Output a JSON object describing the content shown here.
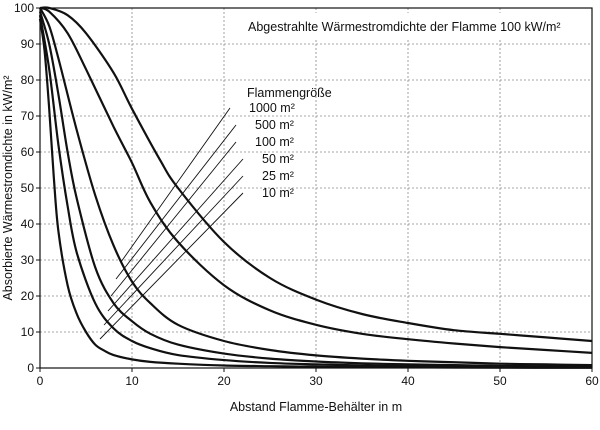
{
  "chart_data": {
    "type": "line",
    "title": "Abgestrahlte Wärmestromdichte der Flamme 100 kW/m²",
    "xlabel": "Abstand Flamme-Behälter in m",
    "ylabel": "Absorbierte Wärmestromdichte in kW/m²",
    "xlim": [
      0,
      60
    ],
    "ylim": [
      0,
      100
    ],
    "x_ticks": [
      "0",
      "10",
      "20",
      "30",
      "40",
      "50",
      "60"
    ],
    "y_ticks": [
      "0",
      "10",
      "20",
      "30",
      "40",
      "50",
      "60",
      "70",
      "80",
      "90",
      "100"
    ],
    "grid": true,
    "legend_title": "Flammengröße",
    "series": [
      {
        "name": "1000 m²",
        "x": [
          0,
          1,
          3,
          5,
          8,
          10,
          13,
          15,
          20,
          25,
          30,
          35,
          40,
          45,
          50,
          55,
          60
        ],
        "y": [
          100,
          100,
          98,
          93,
          82,
          72,
          58,
          50,
          35,
          25,
          19,
          15,
          12.5,
          10.5,
          9.5,
          8.5,
          7.5
        ]
      },
      {
        "name": "500 m²",
        "x": [
          0,
          1,
          3,
          5,
          8,
          10,
          12,
          15,
          20,
          25,
          30,
          35,
          40,
          45,
          50,
          55,
          60
        ],
        "y": [
          100,
          99,
          93,
          83,
          67,
          57,
          46,
          35,
          23,
          16,
          12,
          9.5,
          8,
          6.8,
          5.8,
          5,
          4.2
        ]
      },
      {
        "name": "100 m²",
        "x": [
          0,
          1,
          2,
          4,
          6,
          8,
          10,
          12,
          15,
          20,
          25,
          30,
          35,
          40,
          45,
          50,
          55,
          60
        ],
        "y": [
          100,
          95,
          86,
          66,
          48,
          34,
          24,
          18,
          12,
          7.5,
          5,
          3.5,
          2.6,
          2,
          1.6,
          1.2,
          1,
          0.8
        ]
      },
      {
        "name": "50 m²",
        "x": [
          0,
          1,
          2,
          3,
          4,
          6,
          8,
          10,
          12,
          15,
          20,
          25,
          30,
          35,
          40,
          45,
          50,
          55,
          60
        ],
        "y": [
          99,
          90,
          76,
          60,
          47,
          28,
          18,
          13,
          9.5,
          6.5,
          4,
          2.6,
          1.8,
          1.3,
          1,
          0.8,
          0.6,
          0.5,
          0.4
        ]
      },
      {
        "name": "25 m²",
        "x": [
          0,
          1,
          2,
          3,
          4,
          6,
          8,
          10,
          12,
          15,
          20,
          25,
          30,
          35,
          40,
          45,
          50,
          55,
          60
        ],
        "y": [
          98,
          83,
          62,
          45,
          32,
          18,
          11,
          7.5,
          5.5,
          3.6,
          2.2,
          1.4,
          1,
          0.7,
          0.5,
          0.4,
          0.3,
          0.25,
          0.2
        ]
      },
      {
        "name": "10 m²",
        "x": [
          0,
          0.5,
          1,
          1.5,
          2,
          3,
          4,
          5,
          6,
          7,
          8,
          10,
          12,
          15,
          20,
          25,
          30,
          40,
          50,
          60
        ],
        "y": [
          97,
          88,
          72,
          53,
          38,
          23,
          15,
          10,
          6.5,
          4.8,
          3.6,
          2.4,
          1.7,
          1.2,
          0.7,
          0.5,
          0.35,
          0.2,
          0.1,
          0.05
        ]
      }
    ]
  }
}
